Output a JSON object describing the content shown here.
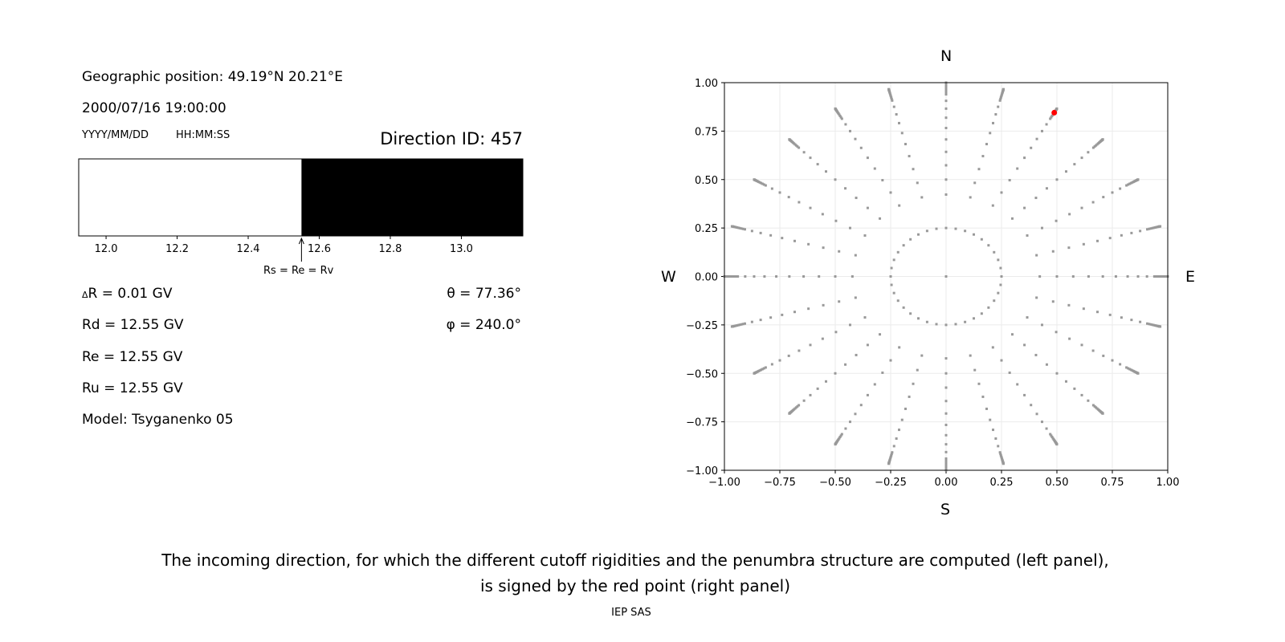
{
  "left": {
    "geo_position": "Geographic position: 49.19°N 20.21°E",
    "datetime": "2000/07/16 19:00:00",
    "date_format": "YYYY/MM/DD",
    "time_format": "HH:MM:SS",
    "direction_id": "Direction ID: 457",
    "bar_annotation": "Rs = Re = Rv",
    "delta_r": "R = 0.01 GV",
    "delta_symbol": "Δ",
    "rd": "Rd = 12.55 GV",
    "re": "Re = 12.55 GV",
    "ru": "Ru = 12.55 GV",
    "model": "Model: Tsyganenko 05",
    "theta": "θ = 77.36°",
    "phi": "φ = 240.0°"
  },
  "right": {
    "north": "N",
    "south": "S",
    "west": "W",
    "east": "E"
  },
  "caption": {
    "line1": "The incoming direction, for which the different cutoff rigidities and the penumbra structure are computed (left panel),",
    "line2": "is signed by the red point (right panel)",
    "credit": "IEP SAS"
  },
  "chart_data": [
    {
      "type": "bar",
      "description_text": "penumbra",
      "xlim": [
        11.923,
        13.173
      ],
      "xticks": [
        "12.0",
        "12.2",
        "12.4",
        "12.6",
        "12.8",
        "13.0"
      ],
      "segments": [
        {
          "from": 11.923,
          "to": 12.55,
          "color": "#ffffff"
        },
        {
          "from": 12.55,
          "to": 13.173,
          "color": "#000000"
        }
      ],
      "marker": 12.55
    },
    {
      "type": "scatter",
      "xlim": [
        -1,
        1
      ],
      "ylim": [
        -1,
        1
      ],
      "xticks": [
        "−1.00",
        "−0.75",
        "−0.50",
        "−0.25",
        "0.00",
        "0.25",
        "0.50",
        "0.75",
        "1.00"
      ],
      "yticks": [
        "1.00",
        "0.75",
        "0.50",
        "0.25",
        "0.00",
        "−0.25",
        "−0.50",
        "−0.75",
        "−1.00"
      ],
      "grid": true,
      "point_color": "#999999",
      "highlight": {
        "x": 0.488,
        "y": 0.845,
        "color": "#ff0000"
      }
    }
  ]
}
